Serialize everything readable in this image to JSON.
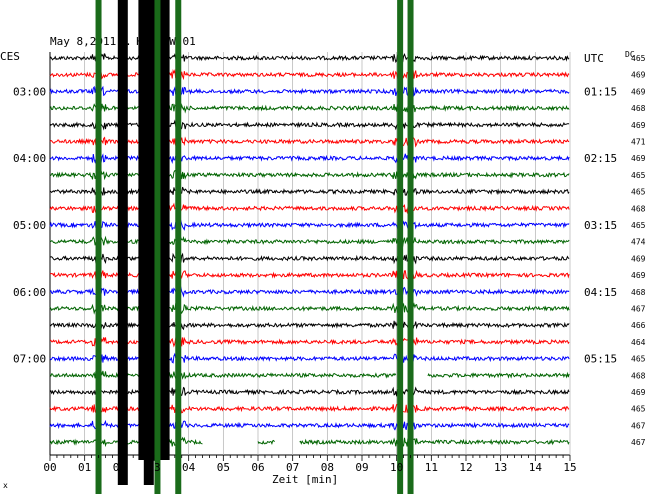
{
  "chart_data": {
    "type": "line",
    "title": "May 8,2011 … HHZ BW 01",
    "left_zone_label": "CES",
    "right_zone_label": "UTC",
    "dc_label": "DC",
    "xlabel": "Zeit [min]",
    "x_ticks": [
      "00",
      "01",
      "02",
      "03",
      "04",
      "05",
      "06",
      "07",
      "08",
      "09",
      "10",
      "11",
      "12",
      "13",
      "14",
      "15"
    ],
    "xlim": [
      0,
      15
    ],
    "lines_per_hour": 4,
    "trace_colors": [
      "#000000",
      "#ff0000",
      "#0000ff",
      "#006400"
    ],
    "left_time_labels": [
      {
        "line": 2,
        "text": "03:00"
      },
      {
        "line": 6,
        "text": "04:00"
      },
      {
        "line": 10,
        "text": "05:00"
      },
      {
        "line": 14,
        "text": "06:00"
      },
      {
        "line": 18,
        "text": "07:00"
      }
    ],
    "right_time_labels": [
      {
        "line": 0,
        "text": "UTC"
      },
      {
        "line": 2,
        "text": "01:15"
      },
      {
        "line": 6,
        "text": "02:15"
      },
      {
        "line": 10,
        "text": "03:15"
      },
      {
        "line": 14,
        "text": "04:15"
      },
      {
        "line": 18,
        "text": "05:15"
      }
    ],
    "dc_offsets": [
      465,
      469,
      469,
      468,
      469,
      471,
      469,
      465,
      465,
      468,
      465,
      474,
      469,
      469,
      468,
      467,
      466,
      464,
      465,
      468,
      469,
      465,
      467,
      467
    ],
    "green_vertical_bands_min": [
      1.4,
      3.1,
      3.7,
      10.1,
      10.4
    ],
    "black_vertical_bands_min": [
      2.1,
      2.85
    ],
    "data_gaps": [
      {
        "line": 23,
        "from_min": 4.4,
        "to_min": 6.0
      },
      {
        "line": 23,
        "from_min": 6.5,
        "to_min": 7.2
      },
      {
        "line": 19,
        "from_min": 10.0,
        "to_min": 10.9
      }
    ],
    "corner_mark": "x"
  }
}
